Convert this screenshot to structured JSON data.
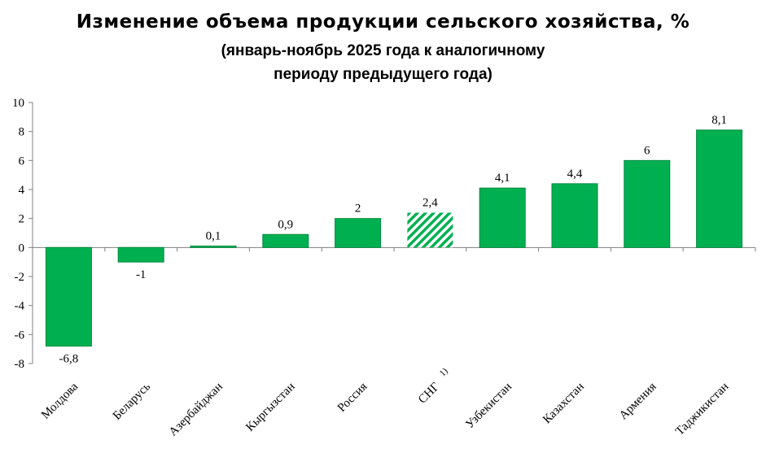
{
  "chart_data": {
    "type": "bar",
    "title": "Изменение объема продукции сельского хозяйства, %",
    "subtitle_line1": "(январь-ноябрь 2025 года к аналогичному",
    "subtitle_line2": "периоду предыдущего года)",
    "categories": [
      "Молдова",
      "Беларусь",
      "Азербайджан",
      "Кыргызстан",
      "Россия",
      "СНГ",
      "Узбекистан",
      "Казахстан",
      "Армения",
      "Таджикистан"
    ],
    "values": [
      -6.8,
      -1,
      0.1,
      0.9,
      2,
      2.4,
      4.1,
      4.4,
      6,
      8.1
    ],
    "value_labels": [
      "-6,8",
      "-1",
      "0,1",
      "0,9",
      "2",
      "2,4",
      "4,1",
      "4,4",
      "6",
      "8,1"
    ],
    "footnote_marks": [
      "",
      "",
      "",
      "",
      "",
      "1)",
      "",
      "",
      "",
      ""
    ],
    "highlight_index": 5,
    "ylim": [
      -8,
      10
    ],
    "yticks": [
      -8,
      -6,
      -4,
      -2,
      0,
      2,
      4,
      6,
      8,
      10
    ],
    "grid": false,
    "colors": {
      "bar": "#00b050",
      "bar_edge": "#008a3e",
      "axis": "#808080"
    }
  }
}
